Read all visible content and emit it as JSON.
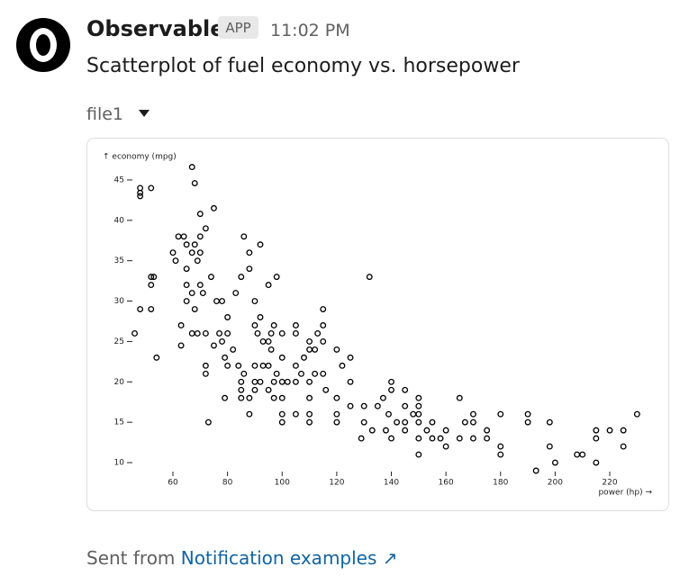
{
  "header": {
    "name": "Observable",
    "badge": "APP",
    "time": "11:02 PM"
  },
  "message": "Scatterplot of fuel economy vs. horsepower",
  "file": {
    "name": "file1"
  },
  "chart_data": {
    "type": "scatter",
    "y_label": "↑ economy (mpg)",
    "x_label": "power (hp) →",
    "color": "#000000",
    "x": [
      46,
      48,
      48,
      48,
      52,
      48,
      52,
      52,
      52,
      53,
      54,
      60,
      62,
      61,
      65,
      64,
      65,
      67,
      67,
      68,
      68,
      70,
      70,
      71,
      72,
      75,
      70,
      69,
      67,
      65,
      65,
      68,
      63,
      63,
      67,
      69,
      72,
      70,
      74,
      72,
      72,
      73,
      75,
      78,
      80,
      79,
      76,
      78,
      80,
      83,
      85,
      86,
      88,
      88,
      90,
      90,
      92,
      92,
      95,
      97,
      98,
      100,
      95,
      96,
      93,
      90,
      86,
      85,
      85,
      85,
      88,
      88,
      90,
      90,
      92,
      95,
      95,
      97,
      97,
      98,
      100,
      100,
      100,
      100,
      100,
      102,
      105,
      105,
      105,
      105,
      105,
      107,
      108,
      110,
      110,
      110,
      110,
      110,
      110,
      112,
      112,
      113,
      115,
      115,
      115,
      115,
      116,
      120,
      120,
      120,
      120,
      122,
      125,
      125,
      125,
      129,
      130,
      130,
      132,
      133,
      135,
      137,
      140,
      140,
      139,
      138,
      140,
      142,
      145,
      145,
      145,
      145,
      148,
      150,
      150,
      150,
      150,
      150,
      150,
      153,
      155,
      155,
      158,
      160,
      160,
      165,
      165,
      167,
      170,
      170,
      170,
      175,
      175,
      180,
      180,
      180,
      190,
      190,
      193,
      198,
      198,
      200,
      208,
      210,
      215,
      215,
      215,
      220,
      225,
      225,
      230,
      84,
      82,
      77,
      79,
      80,
      91,
      93,
      96
    ],
    "values": [
      26,
      44,
      43.4,
      43,
      44,
      29,
      29,
      32,
      33,
      33,
      23,
      36,
      38,
      35,
      37,
      38,
      34,
      36,
      46.6,
      44.6,
      37,
      38,
      40.8,
      31,
      39,
      41.5,
      36,
      35,
      31,
      32,
      30,
      29,
      27,
      24.5,
      26,
      26,
      26,
      32,
      33,
      21,
      22,
      15,
      24.5,
      25,
      26,
      18,
      30,
      30,
      28,
      31,
      33,
      38,
      36,
      34,
      27,
      30,
      37,
      28,
      32,
      27,
      33,
      26,
      25,
      24,
      22,
      22,
      21,
      20,
      19,
      18,
      18,
      16,
      19,
      20,
      20,
      22,
      19,
      18,
      20,
      21,
      23,
      18,
      16,
      15,
      20,
      20,
      26,
      27,
      22,
      20,
      16,
      21,
      23,
      25,
      24,
      20,
      18,
      15,
      16,
      24,
      21,
      26,
      29,
      27,
      25,
      21,
      19,
      24,
      18,
      16,
      15,
      22,
      20,
      23,
      17,
      13,
      17,
      15,
      33,
      14,
      17,
      18,
      20,
      19,
      16,
      14,
      13,
      15,
      19,
      17,
      15,
      14,
      16,
      18,
      17,
      16,
      15,
      13,
      11,
      14,
      15,
      13,
      13,
      14,
      12,
      18,
      13,
      15,
      16,
      13,
      15,
      14,
      13,
      16,
      12,
      11,
      16,
      15,
      9,
      15,
      12,
      10,
      11,
      11,
      14,
      13,
      10,
      14,
      14,
      12,
      16,
      22,
      24,
      26,
      23,
      22,
      26,
      25,
      26
    ],
    "xlim": [
      44,
      232
    ],
    "ylim": [
      9,
      47
    ],
    "xticks": [
      60,
      80,
      100,
      120,
      140,
      160,
      180,
      200,
      220
    ],
    "yticks": [
      10,
      15,
      20,
      25,
      30,
      35,
      40,
      45
    ]
  },
  "footer": {
    "prefix": "Sent from",
    "link": "Notification examples ↗"
  }
}
